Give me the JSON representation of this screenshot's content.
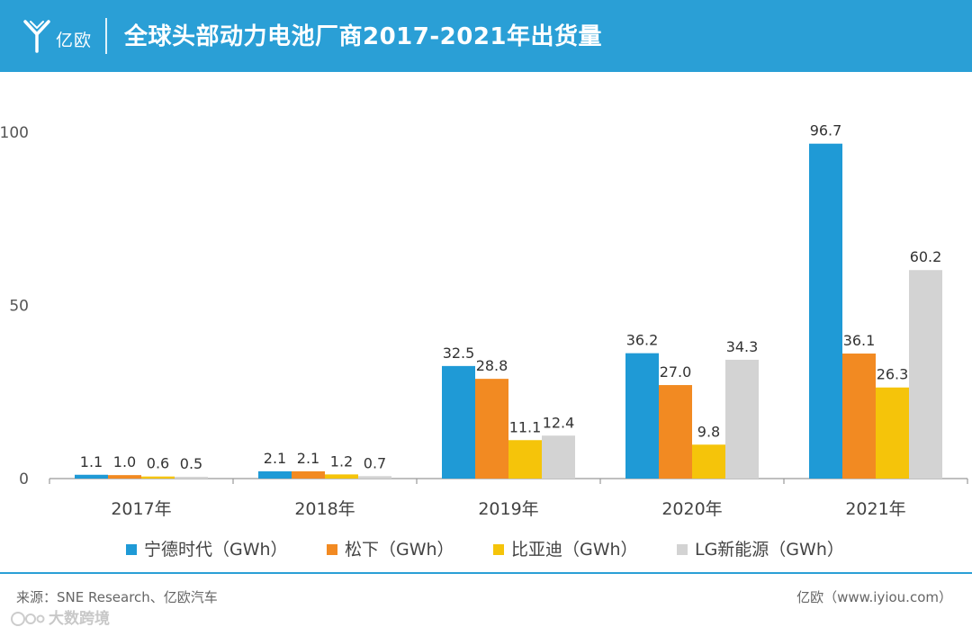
{
  "header": {
    "logo_text": "亿欧",
    "title": "全球头部动力电池厂商2017-2021年出货量"
  },
  "colors": {
    "header_bg": "#2a9fd6",
    "axis": "#999999"
  },
  "chart_data": {
    "type": "bar",
    "title": "全球头部动力电池厂商2017-2021年出货量",
    "categories": [
      "2017年",
      "2018年",
      "2019年",
      "2020年",
      "2021年"
    ],
    "series": [
      {
        "name": "宁德时代（GWh）",
        "color": "#1f9ad6",
        "values": [
          1.1,
          2.1,
          32.5,
          36.2,
          96.7
        ],
        "labels": [
          "1.1",
          "2.1",
          "32.5",
          "36.2",
          "96.7"
        ]
      },
      {
        "name": "松下（GWh）",
        "color": "#f28a22",
        "values": [
          1.0,
          2.1,
          28.8,
          27.0,
          36.1
        ],
        "labels": [
          "1.0",
          "2.1",
          "28.8",
          "27.0",
          "36.1"
        ]
      },
      {
        "name": "比亚迪（GWh）",
        "color": "#f5c40a",
        "values": [
          0.6,
          1.2,
          11.1,
          9.8,
          26.3
        ],
        "labels": [
          "0.6",
          "1.2",
          "11.1",
          "9.8",
          "26.3"
        ]
      },
      {
        "name": "LG新能源（GWh）",
        "color": "#d3d3d3",
        "values": [
          0.5,
          0.7,
          12.4,
          34.3,
          60.2
        ],
        "labels": [
          "0.5",
          "0.7",
          "12.4",
          "34.3",
          "60.2"
        ]
      }
    ],
    "yticks": [
      "0",
      "50",
      "100"
    ],
    "ylim": [
      0,
      100
    ],
    "xlabel": "",
    "ylabel": "",
    "grid": false,
    "legend": "bottom"
  },
  "footer": {
    "source": "来源：SNE Research、亿欧汽车",
    "credit": "亿欧（www.iyiou.com）",
    "watermark": "大数跨境"
  }
}
